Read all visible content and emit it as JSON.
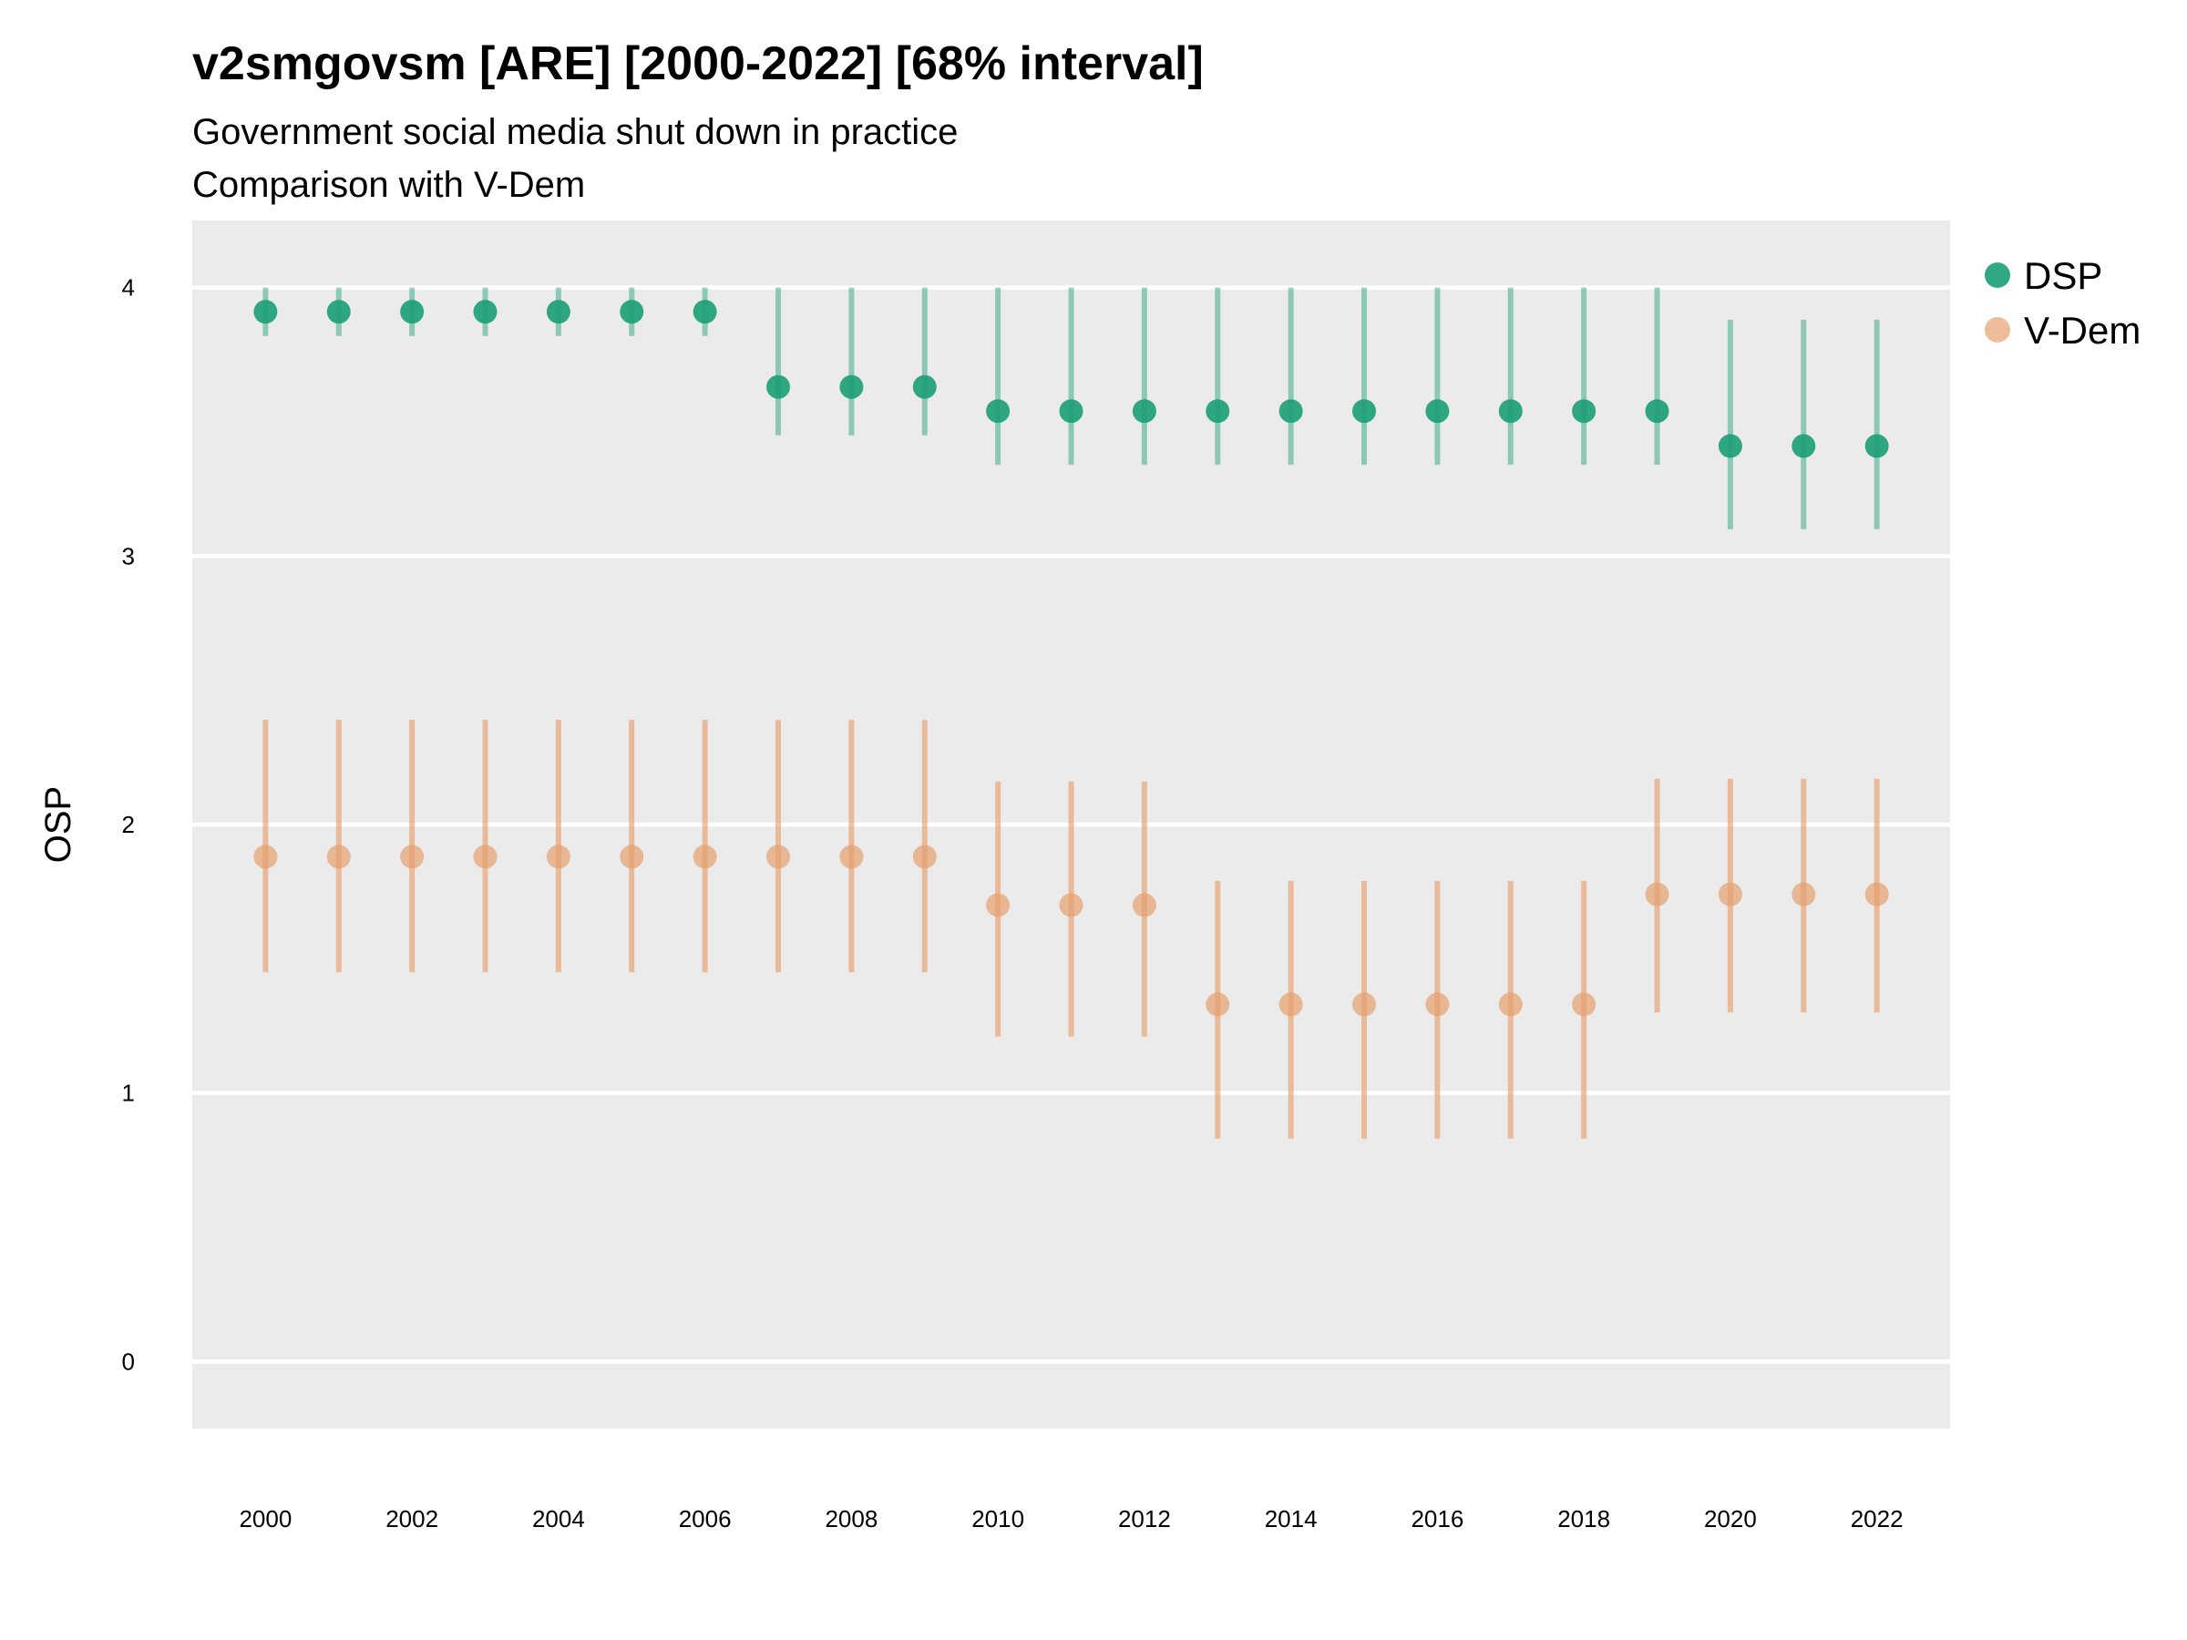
{
  "chart_data": {
    "type": "scatter",
    "title": "v2smgovsm [ARE] [2000-2022] [68% interval]",
    "subtitle": [
      "Government social media shut down in practice",
      "Comparison with V-Dem"
    ],
    "xlabel": "",
    "ylabel": "OSP",
    "x_ticks": [
      "2000",
      "2002",
      "2004",
      "2006",
      "2008",
      "2010",
      "2012",
      "2014",
      "2016",
      "2018",
      "2020",
      "2022"
    ],
    "y_ticks": [
      "0",
      "1",
      "2",
      "3",
      "4"
    ],
    "xlim": [
      1999,
      2023
    ],
    "ylim": [
      -0.25,
      4.25
    ],
    "grid": "horizontal",
    "legend_position": "right",
    "x": [
      2000,
      2001,
      2002,
      2003,
      2004,
      2005,
      2006,
      2007,
      2008,
      2009,
      2010,
      2011,
      2012,
      2013,
      2014,
      2015,
      2016,
      2017,
      2018,
      2019,
      2020,
      2021,
      2022
    ],
    "series": [
      {
        "name": "DSP",
        "color": "#1b9e77",
        "values": [
          3.91,
          3.91,
          3.91,
          3.91,
          3.91,
          3.91,
          3.91,
          3.63,
          3.63,
          3.63,
          3.54,
          3.54,
          3.54,
          3.54,
          3.54,
          3.54,
          3.54,
          3.54,
          3.54,
          3.54,
          3.41,
          3.41,
          3.41
        ],
        "lower": [
          3.82,
          3.82,
          3.82,
          3.82,
          3.82,
          3.82,
          3.82,
          3.45,
          3.45,
          3.45,
          3.34,
          3.34,
          3.34,
          3.34,
          3.34,
          3.34,
          3.34,
          3.34,
          3.34,
          3.34,
          3.1,
          3.1,
          3.1
        ],
        "upper": [
          4.0,
          4.0,
          4.0,
          4.0,
          4.0,
          4.0,
          4.0,
          4.0,
          4.0,
          4.0,
          4.0,
          4.0,
          4.0,
          4.0,
          4.0,
          4.0,
          4.0,
          4.0,
          4.0,
          4.0,
          3.88,
          3.88,
          3.88
        ]
      },
      {
        "name": "V-Dem",
        "color": "#e6a06e",
        "values": [
          1.88,
          1.88,
          1.88,
          1.88,
          1.88,
          1.88,
          1.88,
          1.88,
          1.88,
          1.88,
          1.7,
          1.7,
          1.7,
          1.33,
          1.33,
          1.33,
          1.33,
          1.33,
          1.33,
          1.74,
          1.74,
          1.74,
          1.74
        ],
        "lower": [
          1.45,
          1.45,
          1.45,
          1.45,
          1.45,
          1.45,
          1.45,
          1.45,
          1.45,
          1.45,
          1.21,
          1.21,
          1.21,
          0.83,
          0.83,
          0.83,
          0.83,
          0.83,
          0.83,
          1.3,
          1.3,
          1.3,
          1.3
        ],
        "upper": [
          2.39,
          2.39,
          2.39,
          2.39,
          2.39,
          2.39,
          2.39,
          2.39,
          2.39,
          2.39,
          2.16,
          2.16,
          2.16,
          1.79,
          1.79,
          1.79,
          1.79,
          1.79,
          1.79,
          2.17,
          2.17,
          2.17,
          2.17
        ]
      }
    ]
  }
}
